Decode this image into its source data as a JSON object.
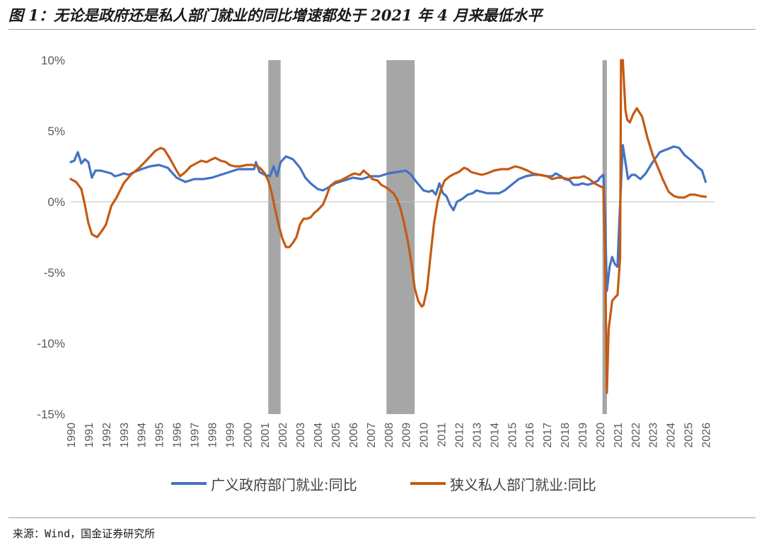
{
  "title": "图 1：无论是政府还是私人部门就业的同比增速都处于 2021 年 4 月来最低水平",
  "source": "来源：Wind，国金证券研究所",
  "chart_data": {
    "type": "line",
    "yticks": [
      "10%",
      "5%",
      "0%",
      "-5%",
      "-10%",
      "-15%"
    ],
    "ylim": [
      -15,
      10
    ],
    "xlim": [
      1990,
      2026.5
    ],
    "xticks": [
      "1990",
      "1991",
      "1992",
      "1993",
      "1994",
      "1995",
      "1996",
      "1997",
      "1998",
      "1999",
      "2000",
      "2001",
      "2002",
      "2003",
      "2004",
      "2005",
      "2006",
      "2007",
      "2008",
      "2009",
      "2010",
      "2011",
      "2012",
      "2013",
      "2014",
      "2015",
      "2016",
      "2017",
      "2018",
      "2019",
      "2020",
      "2021",
      "2022",
      "2023",
      "2024",
      "2025",
      "2026"
    ],
    "recessions": [
      [
        2001.2,
        2001.9
      ],
      [
        2007.9,
        2009.5
      ],
      [
        2020.15,
        2020.4
      ]
    ],
    "recession_color": "#a6a6a6",
    "grid": false,
    "legend_position": "bottom",
    "series": [
      {
        "name": "广义政府部门就业:同比",
        "color": "#4472c4",
        "points": [
          [
            1990.0,
            2.8
          ],
          [
            1990.2,
            2.9
          ],
          [
            1990.4,
            3.5
          ],
          [
            1990.6,
            2.7
          ],
          [
            1990.8,
            3.0
          ],
          [
            1991.0,
            2.8
          ],
          [
            1991.2,
            1.7
          ],
          [
            1991.4,
            2.2
          ],
          [
            1991.7,
            2.2
          ],
          [
            1992.0,
            2.1
          ],
          [
            1992.3,
            2.0
          ],
          [
            1992.5,
            1.8
          ],
          [
            1992.8,
            1.9
          ],
          [
            1993.0,
            2.0
          ],
          [
            1993.3,
            1.9
          ],
          [
            1993.6,
            2.1
          ],
          [
            1994.0,
            2.3
          ],
          [
            1994.5,
            2.5
          ],
          [
            1995.0,
            2.6
          ],
          [
            1995.5,
            2.4
          ],
          [
            1996.0,
            1.7
          ],
          [
            1996.5,
            1.4
          ],
          [
            1997.0,
            1.6
          ],
          [
            1997.5,
            1.6
          ],
          [
            1998.0,
            1.7
          ],
          [
            1998.5,
            1.9
          ],
          [
            1999.0,
            2.1
          ],
          [
            1999.5,
            2.3
          ],
          [
            2000.0,
            2.3
          ],
          [
            2000.4,
            2.3
          ],
          [
            2000.5,
            2.8
          ],
          [
            2000.7,
            2.1
          ],
          [
            2001.0,
            1.9
          ],
          [
            2001.3,
            1.8
          ],
          [
            2001.5,
            2.5
          ],
          [
            2001.7,
            1.8
          ],
          [
            2001.9,
            2.8
          ],
          [
            2002.2,
            3.2
          ],
          [
            2002.6,
            3.0
          ],
          [
            2003.0,
            2.4
          ],
          [
            2003.3,
            1.7
          ],
          [
            2003.6,
            1.3
          ],
          [
            2004.0,
            0.9
          ],
          [
            2004.3,
            0.8
          ],
          [
            2004.6,
            1.0
          ],
          [
            2005.0,
            1.3
          ],
          [
            2005.5,
            1.5
          ],
          [
            2006.0,
            1.7
          ],
          [
            2006.5,
            1.6
          ],
          [
            2007.0,
            1.8
          ],
          [
            2007.5,
            1.8
          ],
          [
            2008.0,
            2.0
          ],
          [
            2008.5,
            2.1
          ],
          [
            2009.0,
            2.2
          ],
          [
            2009.3,
            1.9
          ],
          [
            2009.6,
            1.4
          ],
          [
            2010.0,
            0.8
          ],
          [
            2010.3,
            0.7
          ],
          [
            2010.5,
            0.8
          ],
          [
            2010.7,
            0.5
          ],
          [
            2010.9,
            1.3
          ],
          [
            2011.1,
            0.6
          ],
          [
            2011.3,
            0.4
          ],
          [
            2011.5,
            -0.2
          ],
          [
            2011.7,
            -0.6
          ],
          [
            2011.9,
            0.0
          ],
          [
            2012.2,
            0.2
          ],
          [
            2012.5,
            0.5
          ],
          [
            2012.8,
            0.6
          ],
          [
            2013.0,
            0.8
          ],
          [
            2013.3,
            0.7
          ],
          [
            2013.6,
            0.6
          ],
          [
            2014.0,
            0.6
          ],
          [
            2014.3,
            0.6
          ],
          [
            2014.6,
            0.8
          ],
          [
            2015.0,
            1.2
          ],
          [
            2015.4,
            1.6
          ],
          [
            2015.8,
            1.8
          ],
          [
            2016.2,
            1.9
          ],
          [
            2016.6,
            1.9
          ],
          [
            2017.0,
            1.8
          ],
          [
            2017.3,
            1.8
          ],
          [
            2017.5,
            2.0
          ],
          [
            2017.8,
            1.8
          ],
          [
            2018.0,
            1.6
          ],
          [
            2018.3,
            1.5
          ],
          [
            2018.5,
            1.2
          ],
          [
            2018.8,
            1.2
          ],
          [
            2019.0,
            1.3
          ],
          [
            2019.3,
            1.2
          ],
          [
            2019.6,
            1.3
          ],
          [
            2019.9,
            1.5
          ],
          [
            2020.0,
            1.7
          ],
          [
            2020.2,
            1.9
          ],
          [
            2020.3,
            -1.2
          ],
          [
            2020.4,
            -6.3
          ],
          [
            2020.55,
            -4.6
          ],
          [
            2020.7,
            -3.9
          ],
          [
            2020.85,
            -4.4
          ],
          [
            2021.0,
            -4.6
          ],
          [
            2021.1,
            -1.5
          ],
          [
            2021.3,
            4.0
          ],
          [
            2021.45,
            2.8
          ],
          [
            2021.6,
            1.6
          ],
          [
            2021.8,
            1.9
          ],
          [
            2022.0,
            1.9
          ],
          [
            2022.3,
            1.6
          ],
          [
            2022.6,
            2.0
          ],
          [
            2023.0,
            2.8
          ],
          [
            2023.4,
            3.5
          ],
          [
            2023.8,
            3.7
          ],
          [
            2024.2,
            3.9
          ],
          [
            2024.5,
            3.8
          ],
          [
            2024.8,
            3.3
          ],
          [
            2025.2,
            2.9
          ],
          [
            2025.5,
            2.5
          ],
          [
            2025.8,
            2.2
          ],
          [
            2026.0,
            1.4
          ]
        ]
      },
      {
        "name": "狭义私人部门就业:同比",
        "color": "#c55a11",
        "points": [
          [
            1990.0,
            1.6
          ],
          [
            1990.3,
            1.4
          ],
          [
            1990.6,
            0.9
          ],
          [
            1990.8,
            -0.2
          ],
          [
            1991.0,
            -1.5
          ],
          [
            1991.2,
            -2.3
          ],
          [
            1991.5,
            -2.5
          ],
          [
            1991.8,
            -2.0
          ],
          [
            1992.0,
            -1.6
          ],
          [
            1992.3,
            -0.3
          ],
          [
            1992.6,
            0.3
          ],
          [
            1993.0,
            1.3
          ],
          [
            1993.4,
            1.9
          ],
          [
            1993.8,
            2.3
          ],
          [
            1994.2,
            2.8
          ],
          [
            1994.5,
            3.2
          ],
          [
            1994.8,
            3.6
          ],
          [
            1995.1,
            3.8
          ],
          [
            1995.3,
            3.7
          ],
          [
            1995.6,
            3.1
          ],
          [
            1996.0,
            2.2
          ],
          [
            1996.2,
            1.8
          ],
          [
            1996.5,
            2.1
          ],
          [
            1996.8,
            2.5
          ],
          [
            1997.1,
            2.7
          ],
          [
            1997.4,
            2.9
          ],
          [
            1997.7,
            2.8
          ],
          [
            1998.0,
            3.0
          ],
          [
            1998.2,
            3.1
          ],
          [
            1998.5,
            2.9
          ],
          [
            1998.8,
            2.8
          ],
          [
            1999.0,
            2.6
          ],
          [
            1999.3,
            2.5
          ],
          [
            1999.6,
            2.5
          ],
          [
            2000.0,
            2.6
          ],
          [
            2000.3,
            2.6
          ],
          [
            2000.6,
            2.5
          ],
          [
            2000.8,
            2.3
          ],
          [
            2001.0,
            2.0
          ],
          [
            2001.2,
            1.5
          ],
          [
            2001.4,
            0.6
          ],
          [
            2001.6,
            -0.6
          ],
          [
            2001.8,
            -1.7
          ],
          [
            2002.0,
            -2.6
          ],
          [
            2002.2,
            -3.2
          ],
          [
            2002.4,
            -3.2
          ],
          [
            2002.6,
            -2.9
          ],
          [
            2002.8,
            -2.5
          ],
          [
            2003.0,
            -1.6
          ],
          [
            2003.2,
            -1.2
          ],
          [
            2003.4,
            -1.2
          ],
          [
            2003.6,
            -1.1
          ],
          [
            2003.8,
            -0.8
          ],
          [
            2004.0,
            -0.6
          ],
          [
            2004.3,
            -0.2
          ],
          [
            2004.5,
            0.4
          ],
          [
            2004.7,
            1.1
          ],
          [
            2005.0,
            1.4
          ],
          [
            2005.3,
            1.5
          ],
          [
            2005.6,
            1.7
          ],
          [
            2005.9,
            1.9
          ],
          [
            2006.1,
            2.0
          ],
          [
            2006.4,
            1.9
          ],
          [
            2006.6,
            2.2
          ],
          [
            2006.9,
            1.9
          ],
          [
            2007.1,
            1.6
          ],
          [
            2007.4,
            1.5
          ],
          [
            2007.6,
            1.2
          ],
          [
            2007.9,
            1.0
          ],
          [
            2008.1,
            0.8
          ],
          [
            2008.3,
            0.6
          ],
          [
            2008.5,
            0.2
          ],
          [
            2008.7,
            -0.5
          ],
          [
            2008.9,
            -1.5
          ],
          [
            2009.1,
            -2.7
          ],
          [
            2009.3,
            -4.2
          ],
          [
            2009.5,
            -6.1
          ],
          [
            2009.7,
            -7.0
          ],
          [
            2009.9,
            -7.4
          ],
          [
            2010.0,
            -7.3
          ],
          [
            2010.2,
            -6.2
          ],
          [
            2010.4,
            -3.8
          ],
          [
            2010.6,
            -1.5
          ],
          [
            2010.8,
            0.0
          ],
          [
            2011.0,
            0.9
          ],
          [
            2011.2,
            1.5
          ],
          [
            2011.5,
            1.8
          ],
          [
            2011.8,
            2.0
          ],
          [
            2012.0,
            2.1
          ],
          [
            2012.3,
            2.4
          ],
          [
            2012.5,
            2.3
          ],
          [
            2012.7,
            2.1
          ],
          [
            2013.0,
            2.0
          ],
          [
            2013.3,
            1.9
          ],
          [
            2013.6,
            2.0
          ],
          [
            2014.0,
            2.2
          ],
          [
            2014.4,
            2.3
          ],
          [
            2014.8,
            2.3
          ],
          [
            2015.2,
            2.5
          ],
          [
            2015.5,
            2.4
          ],
          [
            2015.9,
            2.2
          ],
          [
            2016.2,
            2.0
          ],
          [
            2016.6,
            1.9
          ],
          [
            2017.0,
            1.8
          ],
          [
            2017.3,
            1.6
          ],
          [
            2017.6,
            1.7
          ],
          [
            2017.9,
            1.7
          ],
          [
            2018.2,
            1.6
          ],
          [
            2018.5,
            1.7
          ],
          [
            2018.8,
            1.7
          ],
          [
            2019.1,
            1.8
          ],
          [
            2019.4,
            1.6
          ],
          [
            2019.7,
            1.3
          ],
          [
            2020.0,
            1.1
          ],
          [
            2020.2,
            1.0
          ],
          [
            2020.3,
            -4.0
          ],
          [
            2020.4,
            -13.5
          ],
          [
            2020.5,
            -9.0
          ],
          [
            2020.7,
            -7.0
          ],
          [
            2020.9,
            -6.7
          ],
          [
            2021.0,
            -6.6
          ],
          [
            2021.15,
            -4.0
          ],
          [
            2021.2,
            10.0
          ],
          [
            2021.3,
            11.5
          ],
          [
            2021.45,
            6.5
          ],
          [
            2021.55,
            5.8
          ],
          [
            2021.7,
            5.6
          ],
          [
            2021.9,
            6.2
          ],
          [
            2022.1,
            6.6
          ],
          [
            2022.4,
            6.0
          ],
          [
            2022.7,
            4.5
          ],
          [
            2023.0,
            3.3
          ],
          [
            2023.3,
            2.4
          ],
          [
            2023.6,
            1.5
          ],
          [
            2023.9,
            0.7
          ],
          [
            2024.2,
            0.4
          ],
          [
            2024.5,
            0.3
          ],
          [
            2024.8,
            0.3
          ],
          [
            2025.1,
            0.5
          ],
          [
            2025.4,
            0.5
          ],
          [
            2025.7,
            0.4
          ],
          [
            2026.0,
            0.35
          ]
        ]
      }
    ]
  }
}
